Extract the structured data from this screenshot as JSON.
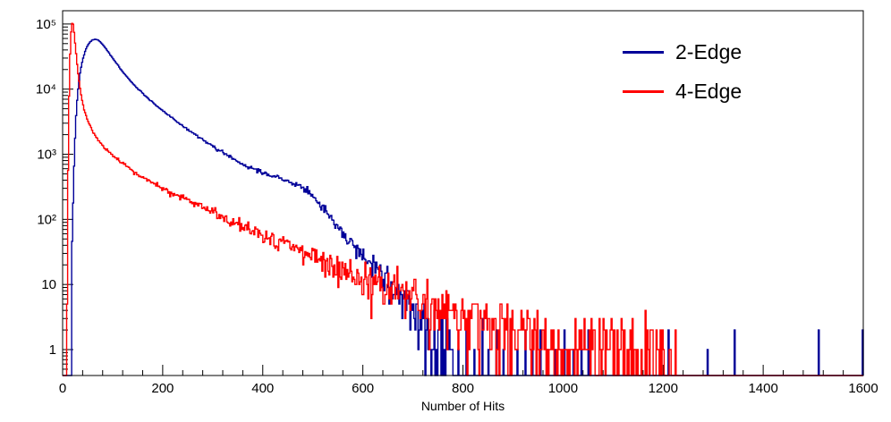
{
  "chart_data": {
    "type": "line",
    "title": "",
    "xlabel": "Number of Hits",
    "ylabel": "",
    "y_scale": "log",
    "x_range": [
      0,
      1600
    ],
    "y_range": [
      0.4,
      160000
    ],
    "x_ticks": [
      0,
      200,
      400,
      600,
      800,
      1000,
      1200,
      1400,
      1600
    ],
    "x_minor_step": 40,
    "y_ticks": [
      {
        "value": 1,
        "label": "1"
      },
      {
        "value": 10,
        "label": "10"
      },
      {
        "value": 100,
        "label": "10²"
      },
      {
        "value": 1000,
        "label": "10³"
      },
      {
        "value": 10000,
        "label": "10⁴"
      },
      {
        "value": 100000,
        "label": "10⁵"
      }
    ],
    "legend": [
      {
        "name": "2-Edge",
        "color": "#000099"
      },
      {
        "name": "4-Edge",
        "color": "#ff0000"
      }
    ],
    "series": [
      {
        "name": "2-Edge",
        "color": "#000099",
        "seed": 7,
        "anchors": [
          [
            16,
            1
          ],
          [
            18,
            12
          ],
          [
            20,
            90
          ],
          [
            22,
            400
          ],
          [
            24,
            1200
          ],
          [
            26,
            2800
          ],
          [
            28,
            5500
          ],
          [
            31,
            10000
          ],
          [
            34,
            16000
          ],
          [
            38,
            24000
          ],
          [
            42,
            32000
          ],
          [
            46,
            40000
          ],
          [
            50,
            47000
          ],
          [
            55,
            53000
          ],
          [
            60,
            57000
          ],
          [
            65,
            58500
          ],
          [
            70,
            57000
          ],
          [
            75,
            53500
          ],
          [
            80,
            48500
          ],
          [
            85,
            43500
          ],
          [
            90,
            38500
          ],
          [
            95,
            34000
          ],
          [
            100,
            30000
          ],
          [
            110,
            23500
          ],
          [
            120,
            18500
          ],
          [
            130,
            15000
          ],
          [
            140,
            12200
          ],
          [
            150,
            10200
          ],
          [
            160,
            8600
          ],
          [
            170,
            7300
          ],
          [
            180,
            6300
          ],
          [
            190,
            5400
          ],
          [
            200,
            4700
          ],
          [
            215,
            3800
          ],
          [
            230,
            3100
          ],
          [
            245,
            2550
          ],
          [
            260,
            2100
          ],
          [
            275,
            1750
          ],
          [
            290,
            1480
          ],
          [
            305,
            1250
          ],
          [
            320,
            1060
          ],
          [
            335,
            900
          ],
          [
            350,
            780
          ],
          [
            365,
            680
          ],
          [
            380,
            600
          ],
          [
            395,
            540
          ],
          [
            410,
            490
          ],
          [
            425,
            450
          ],
          [
            440,
            410
          ],
          [
            455,
            370
          ],
          [
            470,
            330
          ],
          [
            480,
            300
          ],
          [
            490,
            265
          ],
          [
            500,
            225
          ],
          [
            510,
            185
          ],
          [
            520,
            150
          ],
          [
            530,
            120
          ],
          [
            545,
            88
          ],
          [
            560,
            64
          ],
          [
            575,
            47
          ],
          [
            590,
            35
          ],
          [
            605,
            26
          ],
          [
            620,
            19
          ],
          [
            635,
            14.5
          ],
          [
            650,
            11
          ],
          [
            665,
            8.5
          ],
          [
            680,
            6.5
          ],
          [
            695,
            5
          ],
          [
            710,
            3.9
          ],
          [
            725,
            3
          ],
          [
            740,
            2.4
          ],
          [
            755,
            1.9
          ],
          [
            770,
            1.5
          ],
          [
            780,
            1.3
          ]
        ],
        "tail_spikes": [
          [
            790,
            1
          ],
          [
            806,
            2
          ],
          [
            822,
            1
          ],
          [
            838,
            3
          ],
          [
            850,
            1
          ],
          [
            866,
            2
          ],
          [
            880,
            1
          ],
          [
            894,
            2
          ],
          [
            908,
            1
          ],
          [
            924,
            2
          ],
          [
            938,
            1
          ],
          [
            954,
            2
          ],
          [
            968,
            1
          ],
          [
            984,
            1
          ],
          [
            1002,
            2
          ],
          [
            1020,
            1
          ],
          [
            1036,
            1
          ],
          [
            1050,
            2
          ],
          [
            1210,
            2
          ],
          [
            1288,
            1
          ],
          [
            1342,
            2
          ],
          [
            1510,
            2
          ],
          [
            1598,
            2
          ]
        ]
      },
      {
        "name": "4-Edge",
        "color": "#ff0000",
        "seed": 13,
        "anchors": [
          [
            8,
            1
          ],
          [
            10,
            120
          ],
          [
            12,
            3000
          ],
          [
            14,
            20000
          ],
          [
            16,
            60000
          ],
          [
            18,
            95000
          ],
          [
            20,
            110000
          ],
          [
            22,
            90000
          ],
          [
            24,
            62000
          ],
          [
            26,
            42000
          ],
          [
            28,
            29000
          ],
          [
            30,
            20000
          ],
          [
            33,
            13000
          ],
          [
            36,
            9000
          ],
          [
            40,
            6200
          ],
          [
            45,
            4300
          ],
          [
            50,
            3300
          ],
          [
            55,
            2700
          ],
          [
            60,
            2250
          ],
          [
            70,
            1700
          ],
          [
            80,
            1350
          ],
          [
            90,
            1120
          ],
          [
            100,
            950
          ],
          [
            115,
            760
          ],
          [
            130,
            620
          ],
          [
            145,
            520
          ],
          [
            160,
            440
          ],
          [
            180,
            360
          ],
          [
            200,
            300
          ],
          [
            225,
            240
          ],
          [
            250,
            195
          ],
          [
            275,
            158
          ],
          [
            300,
            128
          ],
          [
            325,
            104
          ],
          [
            350,
            85
          ],
          [
            375,
            70
          ],
          [
            400,
            58
          ],
          [
            430,
            46
          ],
          [
            460,
            37
          ],
          [
            490,
            30
          ],
          [
            520,
            24
          ],
          [
            550,
            19
          ],
          [
            580,
            15.5
          ],
          [
            610,
            12.5
          ],
          [
            640,
            10
          ],
          [
            670,
            8.2
          ],
          [
            700,
            6.7
          ],
          [
            730,
            5.5
          ],
          [
            760,
            4.5
          ],
          [
            790,
            3.8
          ],
          [
            820,
            3.2
          ],
          [
            850,
            2.7
          ],
          [
            880,
            2.3
          ],
          [
            910,
            2.0
          ],
          [
            940,
            1.8
          ],
          [
            970,
            1.6
          ],
          [
            1000,
            1.45
          ],
          [
            1040,
            1.25
          ],
          [
            1080,
            1.1
          ],
          [
            1120,
            0.95
          ],
          [
            1160,
            0.8
          ],
          [
            1200,
            0.65
          ],
          [
            1215,
            0.45
          ],
          [
            1230,
            0.2
          ],
          [
            1248,
            0.05
          ]
        ],
        "tail_spikes": []
      }
    ]
  }
}
